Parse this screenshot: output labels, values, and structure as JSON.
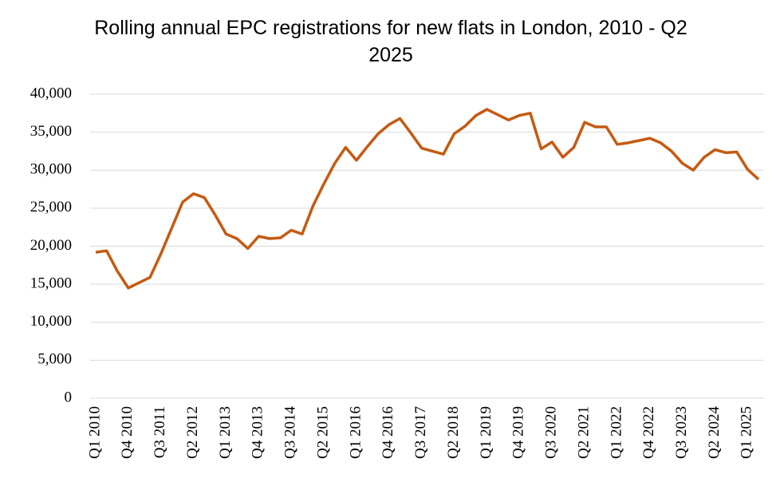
{
  "chart_data": {
    "type": "line",
    "title": "Rolling annual EPC registrations for new flats in London, 2010 - Q2 2025",
    "categories": [
      "Q1 2010",
      null,
      null,
      "Q4 2010",
      null,
      null,
      "Q3 2011",
      null,
      null,
      "Q2 2012",
      null,
      null,
      "Q1 2013",
      null,
      null,
      "Q4 2013",
      null,
      null,
      "Q3 2014",
      null,
      null,
      "Q2 2015",
      null,
      null,
      "Q1 2016",
      null,
      null,
      "Q4 2016",
      null,
      null,
      "Q3 2017",
      null,
      null,
      "Q2 2018",
      null,
      null,
      "Q1 2019",
      null,
      null,
      "Q4 2019",
      null,
      null,
      "Q3 2020",
      null,
      null,
      "Q2 2021",
      null,
      null,
      "Q1 2022",
      null,
      null,
      "Q4 2022",
      null,
      null,
      "Q3 2023",
      null,
      null,
      "Q2 2024",
      null,
      null,
      "Q1 2025",
      null
    ],
    "series": [
      {
        "name": "EPC registrations",
        "color": "#c55a11",
        "values": [
          19200,
          19400,
          16700,
          14500,
          15200,
          15900,
          19000,
          22400,
          25800,
          26900,
          26400,
          24100,
          21600,
          21000,
          19700,
          21300,
          21000,
          21100,
          22100,
          21600,
          25300,
          28200,
          30900,
          33000,
          31300,
          33100,
          34800,
          36000,
          36800,
          34900,
          32900,
          32500,
          32100,
          34800,
          35800,
          37200,
          38000,
          37300,
          36600,
          37200,
          37500,
          32800,
          33700,
          31700,
          33000,
          36300,
          35700,
          35700,
          33400,
          33600,
          33900,
          34200,
          33600,
          32500,
          30900,
          30000,
          31700,
          32700,
          32300,
          32400,
          30100,
          28800
        ]
      }
    ],
    "ylim": [
      0,
      40000
    ],
    "yticks": [
      0,
      {
        "value": 5000,
        "label": "5,000"
      },
      {
        "value": 10000,
        "label": "10,000"
      },
      {
        "value": 15000,
        "label": "15,000"
      },
      {
        "value": 20000,
        "label": "20,000"
      },
      {
        "value": 25000,
        "label": "25,000"
      },
      {
        "value": 30000,
        "label": "30,000"
      },
      {
        "value": 35000,
        "label": "35,000"
      },
      {
        "value": 40000,
        "label": "40,000"
      }
    ],
    "grid": true
  }
}
